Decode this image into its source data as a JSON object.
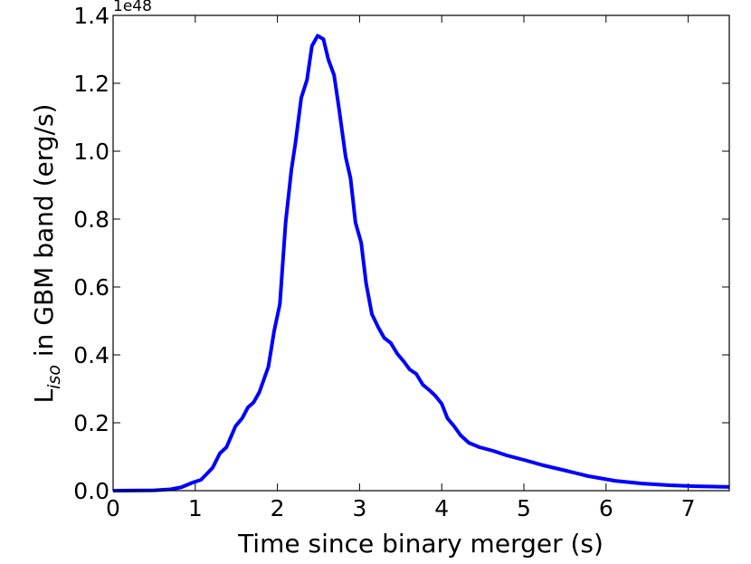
{
  "chart_data": {
    "type": "line",
    "xlabel": "Time since binary merger (s)",
    "ylabel": "L",
    "ylabel_subscript": "iso",
    "ylabel_rest": " in GBM band (erg/s)",
    "offset_label": "1e48",
    "xlim": [
      0,
      7.5
    ],
    "ylim": [
      0,
      1.4
    ],
    "xticks": [
      0,
      1,
      2,
      3,
      4,
      5,
      6,
      7
    ],
    "yticks": [
      {
        "value": 0,
        "label": "0.0"
      },
      0.2,
      0.4,
      0.6,
      0.8,
      {
        "value": 1,
        "label": "1.0"
      },
      1.2,
      1.4
    ],
    "grid": false,
    "series": [
      {
        "color": "#0000ff",
        "x": [
          0,
          0.5,
          0.7,
          0.83,
          0.97,
          1.07,
          1.21,
          1.3,
          1.38,
          1.49,
          1.57,
          1.64,
          1.71,
          1.78,
          1.89,
          1.96,
          2.03,
          2.1,
          2.17,
          2.22,
          2.29,
          2.36,
          2.42,
          2.49,
          2.56,
          2.62,
          2.69,
          2.75,
          2.83,
          2.89,
          2.95,
          3.02,
          3.08,
          3.15,
          3.23,
          3.3,
          3.38,
          3.46,
          3.54,
          3.61,
          3.69,
          3.77,
          3.85,
          3.92,
          4.0,
          4.07,
          4.15,
          4.23,
          4.33,
          4.46,
          4.63,
          4.79,
          5.01,
          5.23,
          5.51,
          5.78,
          6.11,
          6.44,
          6.77,
          7.1,
          7.5
        ],
        "values": [
          0,
          0.001,
          0.004,
          0.01,
          0.024,
          0.032,
          0.067,
          0.11,
          0.128,
          0.19,
          0.213,
          0.245,
          0.26,
          0.29,
          0.365,
          0.47,
          0.55,
          0.79,
          0.945,
          1.025,
          1.157,
          1.21,
          1.31,
          1.34,
          1.33,
          1.27,
          1.224,
          1.125,
          0.984,
          0.92,
          0.79,
          0.73,
          0.61,
          0.52,
          0.48,
          0.45,
          0.435,
          0.403,
          0.38,
          0.357,
          0.344,
          0.312,
          0.296,
          0.28,
          0.256,
          0.213,
          0.19,
          0.163,
          0.141,
          0.128,
          0.117,
          0.104,
          0.09,
          0.075,
          0.059,
          0.043,
          0.029,
          0.021,
          0.016,
          0.013,
          0.011
        ]
      }
    ]
  }
}
